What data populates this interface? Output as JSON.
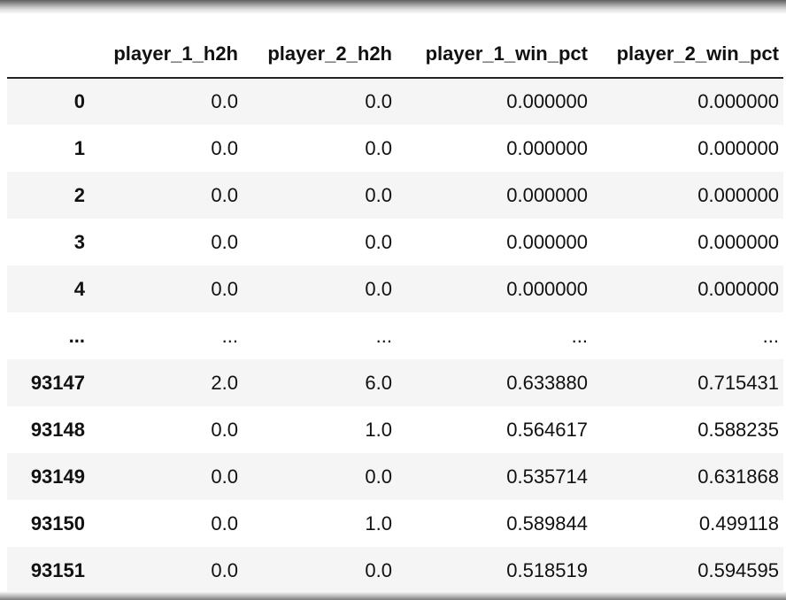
{
  "table": {
    "index_header": "",
    "columns": [
      "player_1_h2h",
      "player_2_h2h",
      "player_1_win_pct",
      "player_2_win_pct"
    ],
    "rows": [
      {
        "index": "0",
        "values": [
          "0.0",
          "0.0",
          "0.000000",
          "0.000000"
        ]
      },
      {
        "index": "1",
        "values": [
          "0.0",
          "0.0",
          "0.000000",
          "0.000000"
        ]
      },
      {
        "index": "2",
        "values": [
          "0.0",
          "0.0",
          "0.000000",
          "0.000000"
        ]
      },
      {
        "index": "3",
        "values": [
          "0.0",
          "0.0",
          "0.000000",
          "0.000000"
        ]
      },
      {
        "index": "4",
        "values": [
          "0.0",
          "0.0",
          "0.000000",
          "0.000000"
        ]
      },
      {
        "index": "...",
        "values": [
          "...",
          "...",
          "...",
          "..."
        ]
      },
      {
        "index": "93147",
        "values": [
          "2.0",
          "6.0",
          "0.633880",
          "0.715431"
        ]
      },
      {
        "index": "93148",
        "values": [
          "0.0",
          "1.0",
          "0.564617",
          "0.588235"
        ]
      },
      {
        "index": "93149",
        "values": [
          "0.0",
          "0.0",
          "0.535714",
          "0.631868"
        ]
      },
      {
        "index": "93150",
        "values": [
          "0.0",
          "1.0",
          "0.589844",
          "0.499118"
        ]
      },
      {
        "index": "93151",
        "values": [
          "0.0",
          "0.0",
          "0.518519",
          "0.594595"
        ]
      }
    ]
  }
}
